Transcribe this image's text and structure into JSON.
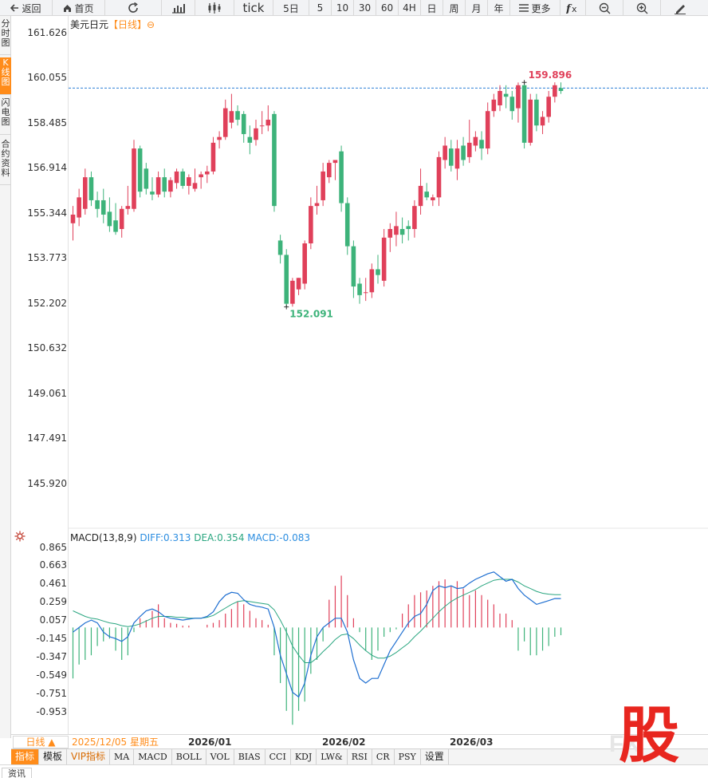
{
  "toolbar": {
    "back": "返回",
    "home": "首页",
    "tick": "tick",
    "d5": "5日",
    "m5": "5",
    "m10": "10",
    "m30": "30",
    "m60": "60",
    "h4": "4H",
    "day": "日",
    "week": "周",
    "month": "月",
    "year": "年",
    "more": "更多"
  },
  "sidetabs": [
    "分\n时\n图",
    "K\n线\n图",
    "闪\n电\n图",
    "合\n约\n资\n料"
  ],
  "header": {
    "symbol": "美元日元",
    "period_tag": "【日线】",
    "toggle_glyph": "⊖"
  },
  "macd": {
    "name": "MACD(13,8,9)",
    "diff": "DIFF:0.313",
    "dea": "DEA:0.354",
    "macd": "MACD:-0.083"
  },
  "price_axis": [
    "161.626",
    "160.055",
    "158.485",
    "156.914",
    "155.344",
    "153.773",
    "152.202",
    "150.632",
    "149.061",
    "147.491",
    "145.920"
  ],
  "macd_axis": [
    "0.865",
    "0.663",
    "0.461",
    "0.259",
    "0.057",
    "-0.145",
    "-0.347",
    "-0.549",
    "-0.751",
    "-0.953"
  ],
  "xaxis": {
    "period_tab": "日线 ▲",
    "current_date": "2025/12/05 星期五",
    "months": [
      "2026/01",
      "2026/02",
      "2026/03"
    ]
  },
  "indicators": [
    "指标",
    "模板",
    "VIP指标",
    "MA",
    "MACD",
    "BOLL",
    "VOL",
    "BIAS",
    "CCI",
    "KDJ",
    "LW&",
    "RSI",
    "CR",
    "PSY",
    "设置"
  ],
  "bottom_tab": "资讯",
  "logo_text": "股",
  "colors": {
    "up": "#e0405a",
    "down": "#3db37a",
    "diff": "#1f6fd1",
    "dea": "#2aa680",
    "accent": "#ff8c1a"
  },
  "chart_data": {
    "type": "candlestick",
    "price_range": [
      145.0,
      162.0
    ],
    "max_label": "159.896",
    "min_label": "152.091",
    "current_price": 159.7,
    "candles": [
      {
        "o": 155.0,
        "h": 155.6,
        "l": 154.4,
        "c": 155.3
      },
      {
        "o": 155.2,
        "h": 156.2,
        "l": 154.9,
        "c": 155.9
      },
      {
        "o": 155.5,
        "h": 156.9,
        "l": 155.3,
        "c": 156.6
      },
      {
        "o": 156.6,
        "h": 156.8,
        "l": 155.6,
        "c": 155.8
      },
      {
        "o": 155.8,
        "h": 156.1,
        "l": 155.2,
        "c": 155.5
      },
      {
        "o": 155.8,
        "h": 156.2,
        "l": 155.0,
        "c": 155.3
      },
      {
        "o": 155.4,
        "h": 155.9,
        "l": 154.7,
        "c": 154.9
      },
      {
        "o": 155.1,
        "h": 155.7,
        "l": 154.6,
        "c": 154.7
      },
      {
        "o": 154.8,
        "h": 155.6,
        "l": 154.5,
        "c": 155.5
      },
      {
        "o": 155.5,
        "h": 156.3,
        "l": 155.3,
        "c": 155.6
      },
      {
        "o": 155.5,
        "h": 157.9,
        "l": 155.4,
        "c": 157.6
      },
      {
        "o": 157.6,
        "h": 157.7,
        "l": 155.9,
        "c": 156.1
      },
      {
        "o": 156.9,
        "h": 157.1,
        "l": 156.0,
        "c": 156.2
      },
      {
        "o": 156.1,
        "h": 156.6,
        "l": 155.8,
        "c": 156.0
      },
      {
        "o": 156.0,
        "h": 156.8,
        "l": 155.9,
        "c": 156.6
      },
      {
        "o": 156.6,
        "h": 156.9,
        "l": 155.9,
        "c": 156.1
      },
      {
        "o": 156.1,
        "h": 156.6,
        "l": 155.9,
        "c": 156.5
      },
      {
        "o": 156.4,
        "h": 156.9,
        "l": 156.2,
        "c": 156.8
      },
      {
        "o": 156.8,
        "h": 156.9,
        "l": 156.2,
        "c": 156.3
      },
      {
        "o": 156.3,
        "h": 156.7,
        "l": 156.0,
        "c": 156.6
      },
      {
        "o": 156.2,
        "h": 156.9,
        "l": 156.1,
        "c": 156.4
      },
      {
        "o": 156.6,
        "h": 156.8,
        "l": 156.2,
        "c": 156.7
      },
      {
        "o": 156.7,
        "h": 157.0,
        "l": 156.4,
        "c": 156.8
      },
      {
        "o": 156.8,
        "h": 158.0,
        "l": 156.7,
        "c": 157.8
      },
      {
        "o": 157.9,
        "h": 158.2,
        "l": 157.6,
        "c": 158.0
      },
      {
        "o": 158.0,
        "h": 159.3,
        "l": 157.9,
        "c": 159.0
      },
      {
        "o": 158.5,
        "h": 159.5,
        "l": 158.3,
        "c": 158.9
      },
      {
        "o": 158.9,
        "h": 159.1,
        "l": 158.4,
        "c": 158.6
      },
      {
        "o": 158.8,
        "h": 158.9,
        "l": 157.8,
        "c": 158.1
      },
      {
        "o": 158.0,
        "h": 158.4,
        "l": 157.4,
        "c": 157.8
      },
      {
        "o": 157.9,
        "h": 158.6,
        "l": 157.7,
        "c": 158.3
      },
      {
        "o": 158.4,
        "h": 158.9,
        "l": 158.1,
        "c": 158.4
      },
      {
        "o": 158.4,
        "h": 159.1,
        "l": 158.2,
        "c": 158.6
      },
      {
        "o": 158.8,
        "h": 158.9,
        "l": 155.4,
        "c": 155.6
      },
      {
        "o": 154.4,
        "h": 154.6,
        "l": 153.6,
        "c": 153.9
      },
      {
        "o": 153.9,
        "h": 154.1,
        "l": 152.091,
        "c": 152.2
      },
      {
        "o": 152.2,
        "h": 153.1,
        "l": 152.1,
        "c": 153.0
      },
      {
        "o": 152.7,
        "h": 153.1,
        "l": 152.5,
        "c": 153.1
      },
      {
        "o": 152.9,
        "h": 154.4,
        "l": 152.7,
        "c": 154.3
      },
      {
        "o": 154.3,
        "h": 155.9,
        "l": 154.1,
        "c": 155.6
      },
      {
        "o": 155.6,
        "h": 156.3,
        "l": 155.3,
        "c": 155.7
      },
      {
        "o": 155.8,
        "h": 157.1,
        "l": 155.6,
        "c": 156.8
      },
      {
        "o": 156.6,
        "h": 157.2,
        "l": 156.4,
        "c": 157.1
      },
      {
        "o": 157.1,
        "h": 157.2,
        "l": 156.5,
        "c": 157.2
      },
      {
        "o": 157.5,
        "h": 157.7,
        "l": 155.4,
        "c": 155.7
      },
      {
        "o": 155.7,
        "h": 155.9,
        "l": 153.9,
        "c": 154.2
      },
      {
        "o": 154.2,
        "h": 154.4,
        "l": 152.4,
        "c": 152.8
      },
      {
        "o": 152.9,
        "h": 153.1,
        "l": 152.2,
        "c": 152.5
      },
      {
        "o": 152.6,
        "h": 153.1,
        "l": 152.3,
        "c": 152.6
      },
      {
        "o": 152.6,
        "h": 153.6,
        "l": 152.4,
        "c": 153.4
      },
      {
        "o": 153.4,
        "h": 153.9,
        "l": 152.9,
        "c": 153.2
      },
      {
        "o": 153.0,
        "h": 154.8,
        "l": 152.8,
        "c": 154.5
      },
      {
        "o": 154.5,
        "h": 155.0,
        "l": 154.0,
        "c": 154.8
      },
      {
        "o": 154.6,
        "h": 155.4,
        "l": 154.2,
        "c": 154.9
      },
      {
        "o": 154.8,
        "h": 155.2,
        "l": 154.3,
        "c": 154.6
      },
      {
        "o": 154.9,
        "h": 155.1,
        "l": 154.4,
        "c": 154.8
      },
      {
        "o": 154.8,
        "h": 155.8,
        "l": 154.5,
        "c": 155.6
      },
      {
        "o": 155.6,
        "h": 156.9,
        "l": 155.3,
        "c": 156.3
      },
      {
        "o": 156.1,
        "h": 156.4,
        "l": 155.8,
        "c": 155.9
      },
      {
        "o": 155.8,
        "h": 156.0,
        "l": 155.6,
        "c": 155.9
      },
      {
        "o": 155.9,
        "h": 157.5,
        "l": 155.6,
        "c": 157.3
      },
      {
        "o": 157.2,
        "h": 158.0,
        "l": 156.9,
        "c": 157.7
      },
      {
        "o": 157.6,
        "h": 157.9,
        "l": 156.8,
        "c": 157.0
      },
      {
        "o": 156.9,
        "h": 157.9,
        "l": 156.5,
        "c": 157.6
      },
      {
        "o": 157.7,
        "h": 158.0,
        "l": 157.0,
        "c": 157.2
      },
      {
        "o": 157.3,
        "h": 158.6,
        "l": 157.1,
        "c": 157.8
      },
      {
        "o": 157.7,
        "h": 158.2,
        "l": 157.5,
        "c": 158.0
      },
      {
        "o": 157.9,
        "h": 158.2,
        "l": 157.2,
        "c": 157.6
      },
      {
        "o": 157.6,
        "h": 159.2,
        "l": 157.4,
        "c": 158.9
      },
      {
        "o": 158.9,
        "h": 159.5,
        "l": 158.7,
        "c": 159.3
      },
      {
        "o": 159.1,
        "h": 159.8,
        "l": 158.9,
        "c": 159.6
      },
      {
        "o": 159.5,
        "h": 159.8,
        "l": 159.0,
        "c": 159.4
      },
      {
        "o": 159.4,
        "h": 159.6,
        "l": 158.6,
        "c": 158.9
      },
      {
        "o": 159.0,
        "h": 159.896,
        "l": 158.5,
        "c": 159.8
      },
      {
        "o": 159.8,
        "h": 159.9,
        "l": 157.6,
        "c": 157.8
      },
      {
        "o": 157.8,
        "h": 159.5,
        "l": 157.7,
        "c": 159.3
      },
      {
        "o": 159.3,
        "h": 159.5,
        "l": 158.2,
        "c": 158.4
      },
      {
        "o": 158.4,
        "h": 158.9,
        "l": 158.1,
        "c": 158.7
      },
      {
        "o": 158.7,
        "h": 159.6,
        "l": 158.5,
        "c": 159.4
      },
      {
        "o": 159.4,
        "h": 159.9,
        "l": 159.2,
        "c": 159.8
      },
      {
        "o": 159.7,
        "h": 159.9,
        "l": 159.5,
        "c": 159.6
      }
    ],
    "macd_hist": [
      -0.55,
      -0.4,
      -0.35,
      -0.3,
      -0.2,
      -0.15,
      -0.12,
      -0.25,
      -0.35,
      -0.3,
      -0.05,
      0.1,
      0.08,
      0.18,
      0.25,
      0.1,
      0.05,
      0.04,
      0.02,
      0.02,
      0.0,
      0.0,
      0.03,
      0.05,
      0.08,
      0.15,
      0.2,
      0.28,
      0.25,
      0.18,
      0.1,
      0.08,
      0.03,
      -0.3,
      -0.6,
      -0.9,
      -1.05,
      -0.9,
      -0.8,
      -0.5,
      -0.35,
      -0.15,
      0.3,
      0.45,
      0.56,
      0.35,
      0.1,
      -0.05,
      -0.25,
      -0.35,
      -0.25,
      -0.1,
      -0.05,
      -0.02,
      0.15,
      0.25,
      0.35,
      0.38,
      0.4,
      0.45,
      0.5,
      0.52,
      0.45,
      0.5,
      0.42,
      0.35,
      0.4,
      0.35,
      0.3,
      0.25,
      0.15,
      0.15,
      0.08,
      -0.25,
      -0.15,
      -0.3,
      -0.3,
      -0.25,
      -0.2,
      -0.1,
      -0.083
    ],
    "diff": [
      -0.05,
      0.0,
      0.05,
      0.08,
      0.05,
      -0.05,
      -0.1,
      -0.12,
      -0.15,
      -0.1,
      0.05,
      0.12,
      0.18,
      0.2,
      0.17,
      0.12,
      0.1,
      0.09,
      0.08,
      0.09,
      0.1,
      0.1,
      0.12,
      0.17,
      0.28,
      0.35,
      0.38,
      0.37,
      0.3,
      0.25,
      0.23,
      0.22,
      0.2,
      0.0,
      -0.3,
      -0.5,
      -0.7,
      -0.75,
      -0.6,
      -0.3,
      -0.1,
      0.0,
      0.05,
      0.1,
      0.1,
      -0.05,
      -0.35,
      -0.55,
      -0.6,
      -0.55,
      -0.55,
      -0.4,
      -0.25,
      -0.15,
      -0.05,
      0.05,
      0.12,
      0.15,
      0.25,
      0.4,
      0.45,
      0.43,
      0.45,
      0.42,
      0.43,
      0.48,
      0.52,
      0.55,
      0.58,
      0.6,
      0.55,
      0.5,
      0.52,
      0.42,
      0.35,
      0.3,
      0.25,
      0.27,
      0.29,
      0.313,
      0.313
    ],
    "dea": [
      0.18,
      0.15,
      0.12,
      0.1,
      0.09,
      0.07,
      0.05,
      0.04,
      0.02,
      0.01,
      0.02,
      0.04,
      0.07,
      0.1,
      0.12,
      0.12,
      0.12,
      0.11,
      0.11,
      0.1,
      0.1,
      0.1,
      0.11,
      0.13,
      0.17,
      0.21,
      0.25,
      0.28,
      0.29,
      0.28,
      0.27,
      0.26,
      0.25,
      0.19,
      0.08,
      -0.05,
      -0.2,
      -0.3,
      -0.38,
      -0.38,
      -0.33,
      -0.26,
      -0.2,
      -0.13,
      -0.08,
      -0.07,
      -0.12,
      -0.19,
      -0.25,
      -0.3,
      -0.33,
      -0.33,
      -0.31,
      -0.27,
      -0.22,
      -0.17,
      -0.1,
      -0.04,
      0.03,
      0.1,
      0.17,
      0.23,
      0.28,
      0.32,
      0.35,
      0.38,
      0.41,
      0.45,
      0.48,
      0.51,
      0.52,
      0.52,
      0.52,
      0.49,
      0.45,
      0.42,
      0.39,
      0.37,
      0.36,
      0.354,
      0.354
    ]
  }
}
